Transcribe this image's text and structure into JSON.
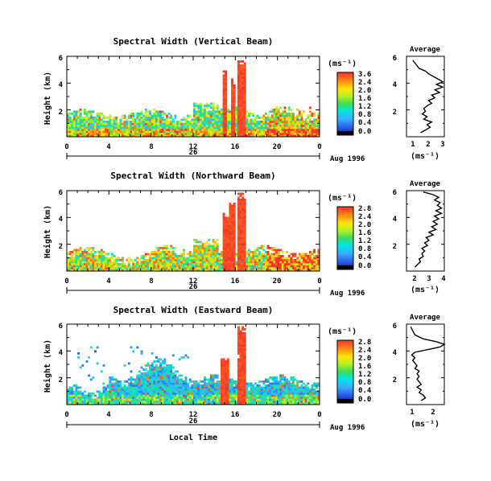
{
  "figure": {
    "x_label": "Local Time",
    "avg_xlabel": "(ms⁻¹)",
    "panels": [
      {
        "title": "Spectral Width (Vertical Beam)",
        "avg_title": "Average",
        "ylabel": "Height (km)",
        "cbar_unit": "(ms⁻¹)",
        "cbar_ticks": [
          "3.6",
          "2.4",
          "2.0",
          "1.6",
          "1.2",
          "0.8",
          "0.4",
          "0.0"
        ],
        "x_ticks": [
          "0",
          "4",
          "8",
          "12",
          "16",
          "20",
          "0"
        ],
        "day_label": "26",
        "date_label": "Aug 1996",
        "y_ticks": [
          "6",
          "4",
          "2"
        ],
        "avg_y_ticks": [
          "6",
          "4",
          "2"
        ],
        "avg_x_ticks": [
          "1",
          "2",
          "3"
        ]
      },
      {
        "title": "Spectral Width (Northward Beam)",
        "avg_title": "Average",
        "ylabel": "Height (km)",
        "cbar_unit": "(ms⁻¹)",
        "cbar_ticks": [
          "2.8",
          "2.4",
          "2.0",
          "1.6",
          "1.2",
          "0.8",
          "0.4",
          "0.0"
        ],
        "x_ticks": [
          "0",
          "4",
          "8",
          "12",
          "16",
          "20",
          "0"
        ],
        "day_label": "26",
        "date_label": "Aug 1996",
        "y_ticks": [
          "6",
          "4",
          "2"
        ],
        "avg_y_ticks": [
          "6",
          "4",
          "2"
        ],
        "avg_x_ticks": [
          "2",
          "3",
          "4"
        ]
      },
      {
        "title": "Spectral Width (Eastward Beam)",
        "avg_title": "Average",
        "ylabel": "Height (km)",
        "cbar_unit": "(ms⁻¹)",
        "cbar_ticks": [
          "2.8",
          "2.4",
          "2.0",
          "1.6",
          "1.2",
          "0.8",
          "0.4",
          "0.0"
        ],
        "x_ticks": [
          "0",
          "4",
          "8",
          "12",
          "16",
          "20",
          "0"
        ],
        "day_label": "26",
        "date_label": "Aug 1996",
        "y_ticks": [
          "6",
          "4",
          "2"
        ],
        "avg_y_ticks": [
          "6",
          "4",
          "2"
        ],
        "avg_x_ticks": [
          "1",
          "2"
        ]
      }
    ]
  },
  "chart_data": [
    {
      "type": "heatmap",
      "title": "Spectral Width (Vertical Beam)",
      "xlabel": "",
      "ylabel": "Height (km)",
      "xlim": [
        0,
        24
      ],
      "ylim": [
        0,
        6
      ],
      "colorbar": {
        "label": "(ms⁻¹)",
        "ticks": [
          0.0,
          0.4,
          0.8,
          1.2,
          1.6,
          2.0,
          2.4,
          3.6
        ]
      },
      "spikes": [
        [
          14.8,
          15.3,
          5.0
        ],
        [
          15.6,
          16.0,
          4.3
        ],
        [
          16.2,
          17.0,
          5.7
        ]
      ],
      "profile": {
        "title": "Average",
        "xlabel": "(ms⁻¹)",
        "xlim": [
          0.6,
          3.0
        ],
        "points": [
          [
            1.5,
            0.3
          ],
          [
            1.8,
            0.5
          ],
          [
            2.1,
            0.7
          ],
          [
            1.9,
            0.9
          ],
          [
            2.2,
            1.1
          ],
          [
            1.7,
            1.3
          ],
          [
            1.9,
            1.5
          ],
          [
            1.6,
            1.7
          ],
          [
            1.8,
            1.9
          ],
          [
            1.7,
            2.1
          ],
          [
            1.9,
            2.3
          ],
          [
            2.2,
            2.5
          ],
          [
            2.0,
            2.7
          ],
          [
            2.4,
            2.9
          ],
          [
            2.2,
            3.1
          ],
          [
            2.7,
            3.3
          ],
          [
            2.4,
            3.5
          ],
          [
            2.9,
            3.7
          ],
          [
            2.5,
            3.9
          ],
          [
            2.9,
            4.1
          ],
          [
            2.6,
            4.3
          ],
          [
            2.3,
            4.5
          ],
          [
            2.0,
            4.7
          ],
          [
            1.8,
            4.9
          ],
          [
            1.4,
            5.1
          ],
          [
            1.2,
            5.4
          ],
          [
            1.0,
            5.7
          ]
        ]
      }
    },
    {
      "type": "heatmap",
      "title": "Spectral Width (Northward Beam)",
      "xlabel": "",
      "ylabel": "Height (km)",
      "xlim": [
        0,
        24
      ],
      "ylim": [
        0,
        6
      ],
      "colorbar": {
        "label": "(ms⁻¹)",
        "ticks": [
          0.0,
          0.4,
          0.8,
          1.2,
          1.6,
          2.0,
          2.4,
          2.8
        ]
      },
      "spikes": [
        [
          14.8,
          15.4,
          4.3
        ],
        [
          15.5,
          16.1,
          5.1
        ],
        [
          16.2,
          17.0,
          5.8
        ]
      ],
      "profile": {
        "title": "Average",
        "xlabel": "(ms⁻¹)",
        "xlim": [
          1.4,
          4.1
        ],
        "points": [
          [
            2.0,
            0.3
          ],
          [
            2.2,
            0.5
          ],
          [
            2.4,
            0.7
          ],
          [
            2.3,
            0.9
          ],
          [
            2.6,
            1.1
          ],
          [
            2.5,
            1.3
          ],
          [
            2.7,
            1.5
          ],
          [
            2.5,
            1.7
          ],
          [
            2.9,
            1.9
          ],
          [
            2.7,
            2.1
          ],
          [
            3.0,
            2.3
          ],
          [
            2.8,
            2.5
          ],
          [
            3.3,
            2.7
          ],
          [
            3.0,
            2.9
          ],
          [
            3.5,
            3.1
          ],
          [
            3.2,
            3.3
          ],
          [
            3.6,
            3.5
          ],
          [
            3.3,
            3.7
          ],
          [
            3.7,
            3.9
          ],
          [
            3.4,
            4.1
          ],
          [
            3.9,
            4.3
          ],
          [
            3.5,
            4.5
          ],
          [
            3.9,
            4.7
          ],
          [
            3.6,
            4.9
          ],
          [
            3.8,
            5.1
          ],
          [
            3.4,
            5.3
          ],
          [
            3.7,
            5.5
          ],
          [
            3.3,
            5.7
          ],
          [
            2.6,
            5.9
          ]
        ]
      }
    },
    {
      "type": "heatmap",
      "title": "Spectral Width (Eastward Beam)",
      "xlabel": "Local Time",
      "ylabel": "Height (km)",
      "xlim": [
        0,
        24
      ],
      "ylim": [
        0,
        6
      ],
      "colorbar": {
        "label": "(ms⁻¹)",
        "ticks": [
          0.0,
          0.4,
          0.8,
          1.2,
          1.6,
          2.0,
          2.4,
          2.8
        ]
      },
      "spikes": [
        [
          14.7,
          15.4,
          3.6
        ],
        [
          16.3,
          17.0,
          5.8
        ]
      ],
      "profile": {
        "title": "Average",
        "xlabel": "(ms⁻¹)",
        "xlim": [
          0.6,
          2.4
        ],
        "points": [
          [
            1.3,
            0.3
          ],
          [
            1.5,
            0.5
          ],
          [
            1.4,
            0.7
          ],
          [
            1.2,
            0.9
          ],
          [
            1.3,
            1.1
          ],
          [
            1.1,
            1.3
          ],
          [
            1.3,
            1.5
          ],
          [
            1.2,
            1.7
          ],
          [
            1.1,
            1.9
          ],
          [
            1.2,
            2.1
          ],
          [
            1.1,
            2.3
          ],
          [
            1.2,
            2.5
          ],
          [
            1.0,
            2.7
          ],
          [
            1.1,
            2.9
          ],
          [
            1.0,
            3.1
          ],
          [
            0.9,
            3.3
          ],
          [
            1.0,
            3.5
          ],
          [
            0.85,
            3.7
          ],
          [
            1.0,
            3.9
          ],
          [
            1.6,
            4.1
          ],
          [
            2.2,
            4.3
          ],
          [
            2.4,
            4.5
          ],
          [
            2.0,
            4.7
          ],
          [
            1.4,
            4.9
          ],
          [
            1.0,
            5.2
          ],
          [
            0.9,
            5.5
          ],
          [
            0.8,
            5.8
          ]
        ]
      }
    }
  ]
}
